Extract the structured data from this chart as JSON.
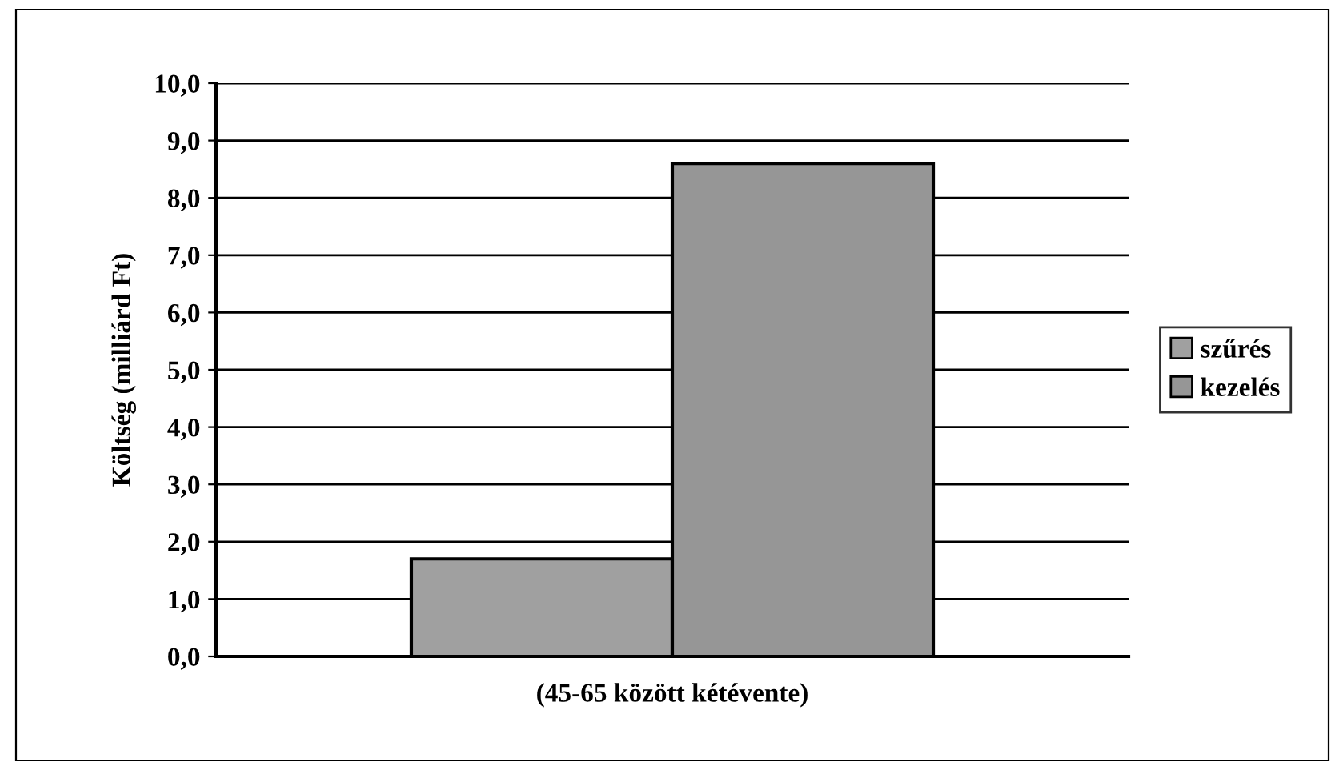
{
  "chart_data": {
    "type": "bar",
    "ylabel": "Költség (milliárd Ft)",
    "categories": [
      "(45-65 között kétévente)"
    ],
    "series": [
      {
        "name": "szűrés",
        "color": "#a0a0a0",
        "values": [
          1.7
        ]
      },
      {
        "name": "kezelés",
        "color": "#969696",
        "values": [
          8.6
        ]
      }
    ],
    "ylim": [
      0,
      10
    ],
    "yticks": [
      {
        "value": 0,
        "label": "0,0"
      },
      {
        "value": 1,
        "label": "1,0"
      },
      {
        "value": 2,
        "label": "2,0"
      },
      {
        "value": 3,
        "label": "3,0"
      },
      {
        "value": 4,
        "label": "4,0"
      },
      {
        "value": 5,
        "label": "5,0"
      },
      {
        "value": 6,
        "label": "6,0"
      },
      {
        "value": 7,
        "label": "7,0"
      },
      {
        "value": 8,
        "label": "8,0"
      },
      {
        "value": 9,
        "label": "9,0"
      },
      {
        "value": 10,
        "label": "10,0"
      }
    ],
    "grid": "y",
    "legend": "right"
  }
}
